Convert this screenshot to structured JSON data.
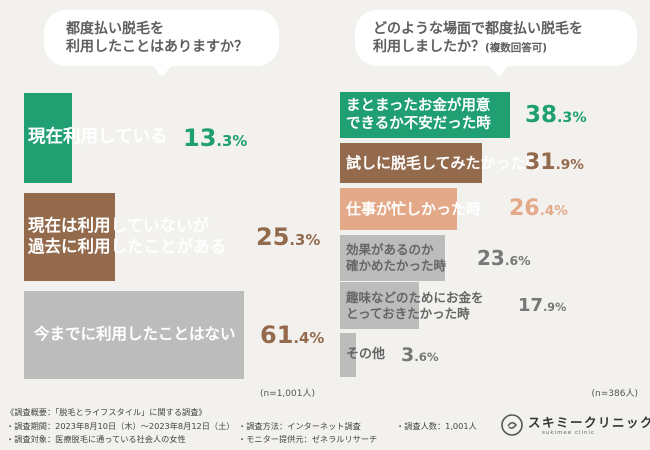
{
  "chart_data": [
    {
      "type": "bar",
      "orientation": "horizontal",
      "title": "都度払い脱毛を利用したことはありますか？",
      "categories": [
        "現在利用している",
        "現在は利用していないが過去に利用したことがある",
        "今までに利用したことはない"
      ],
      "values": [
        13.3,
        25.3,
        61.4
      ],
      "unit": "%",
      "n_note": "(n=1,001人)",
      "colors": [
        "#1f9f72",
        "#946a4d",
        "#bcbcbc"
      ]
    },
    {
      "type": "bar",
      "orientation": "horizontal",
      "title": "どのような場面で都度払い脱毛を利用しましたか？",
      "subtitle": "(複数回答可)",
      "categories": [
        "まとまったお金が用意できるか不安だった時",
        "試しに脱毛してみたかった時",
        "仕事が忙しかった時",
        "効果があるのか確かめたかった時",
        "趣味などのためにお金をとっておきたかった時",
        "その他"
      ],
      "values": [
        38.3,
        31.9,
        26.4,
        23.6,
        17.9,
        3.6
      ],
      "unit": "%",
      "n_note": "(n=386人)",
      "colors": [
        "#1f9f72",
        "#946a4d",
        "#e3a989",
        "#bcbcbc",
        "#bcbcbc",
        "#bcbcbc"
      ]
    }
  ],
  "left": {
    "question_lines": [
      "都度払い脱毛を",
      "利用したことはありますか？"
    ],
    "bar_labels": [
      [
        "現在利用している"
      ],
      [
        "現在は利用していないが",
        "過去に利用したことがある"
      ],
      [
        "今までに利用したことはない"
      ]
    ],
    "pct_main": [
      "13",
      "25",
      "61"
    ],
    "pct_frac": [
      ".3%",
      ".3%",
      ".4%"
    ]
  },
  "right": {
    "question_lines": [
      "どのような場面で都度払い脱毛を",
      "利用しましたか？"
    ],
    "question_sub": "(複数回答可)",
    "bar_labels": [
      [
        "まとまったお金が用意",
        "できるか不安だった時"
      ],
      [
        "試しに脱毛してみたかった時"
      ],
      [
        "仕事が忙しかった時"
      ],
      [
        "効果があるのか",
        "確かめたかった時"
      ],
      [
        "趣味などのためにお金を",
        "とっておきたかった時"
      ],
      [
        "その他"
      ]
    ],
    "pct_main": [
      "38",
      "31",
      "26",
      "23",
      "17",
      "3"
    ],
    "pct_frac": [
      ".3%",
      ".9%",
      ".4%",
      ".6%",
      ".9%",
      ".6%"
    ]
  },
  "footer": {
    "summary": "《調査概要：「脱毛とライフスタイル」に関する調査》",
    "period": "・調査期間：2023年8月10日（木）〜2023年8月12日（土）",
    "target": "・調査対象：医療脱毛に通っている社会人の女性",
    "method": "・調査方法：インターネット調査",
    "provider": "・モニター提供元：ゼネラルリサーチ",
    "count": "・調査人数：1,001人"
  },
  "logo": {
    "name": "スキミークリニック",
    "sub": "sukimee clinic"
  },
  "colors": {
    "background": "#f2f1ee",
    "green": "#1f9f72",
    "brown": "#946a4d",
    "salmon": "#e3a989",
    "gray": "#bcbcbc",
    "text": "#555555"
  }
}
